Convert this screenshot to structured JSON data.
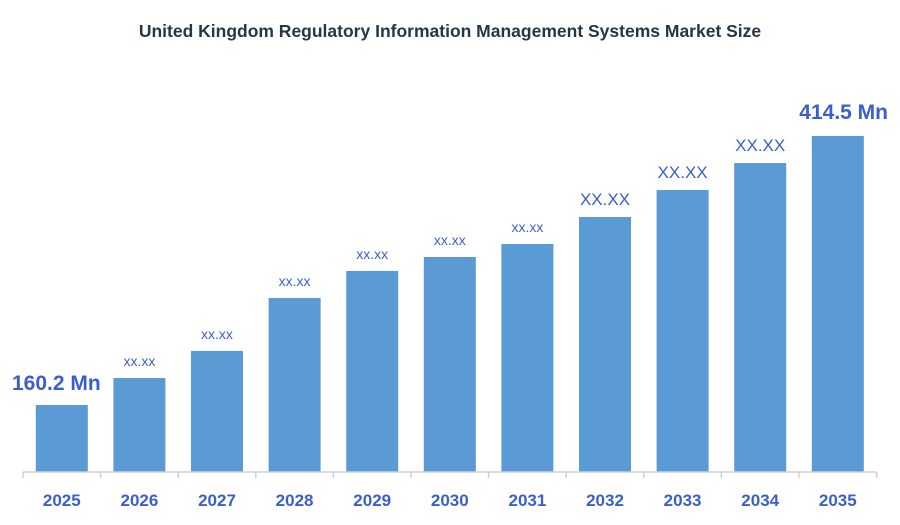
{
  "chart_data": {
    "type": "bar",
    "title": "United Kingdom Regulatory Information Management Systems Market Size",
    "xlabel": "",
    "ylabel": "",
    "categories": [
      "2025",
      "2026",
      "2027",
      "2028",
      "2029",
      "2030",
      "2031",
      "2032",
      "2033",
      "2034",
      "2035"
    ],
    "values": [
      160.2,
      185.7,
      211.3,
      261.4,
      286.9,
      300.1,
      312.4,
      337.9,
      363.4,
      388.9,
      414.5
    ],
    "data_labels": [
      "160.2 Mn",
      "xx.xx",
      "xx.xx",
      "xx.xx",
      "xx.xx",
      "xx.xx",
      "xx.xx",
      "XX.XX",
      "XX.XX",
      "XX.XX",
      "414.5 Mn"
    ],
    "grid": false,
    "legend": "none",
    "colors": {
      "bar": "#5b9bd5",
      "label": "#3a5fcd",
      "title": "#253746",
      "axis": "#d0d0d0"
    }
  }
}
